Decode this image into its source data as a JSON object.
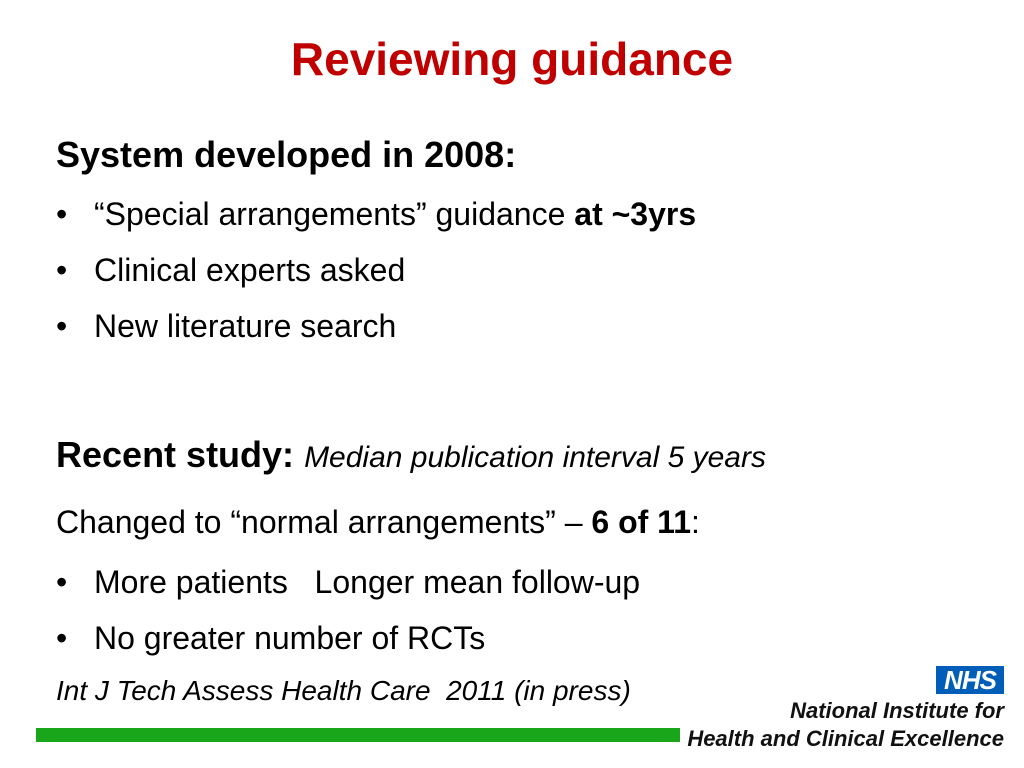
{
  "title": "Reviewing guidance",
  "section1": {
    "heading": "System developed in 2008:",
    "bullets": [
      {
        "pre": "“Special arrangements” guidance ",
        "bold": "at ~3yrs"
      },
      {
        "text": "Clinical experts asked"
      },
      {
        "text": "New literature search"
      }
    ]
  },
  "section2": {
    "heading": "Recent study:",
    "subtitle": "Median publication interval 5 years",
    "changed_pre": "Changed to “normal arrangements” – ",
    "changed_bold": "6 of 11",
    "changed_post": ":",
    "bullets": [
      {
        "text": "More patients   Longer mean follow-up"
      },
      {
        "text": "No greater number of RCTs"
      }
    ]
  },
  "reference": "Int J Tech Assess Health Care  2011 (in press)",
  "logo": {
    "nhs": "NHS",
    "line1": "National Institute for",
    "line2": "Health and Clinical Excellence"
  },
  "bullet_glyph": "•",
  "colors": {
    "title": "#c00000",
    "bar": "#1aa61a",
    "nhs_blue": "#005eb8"
  }
}
